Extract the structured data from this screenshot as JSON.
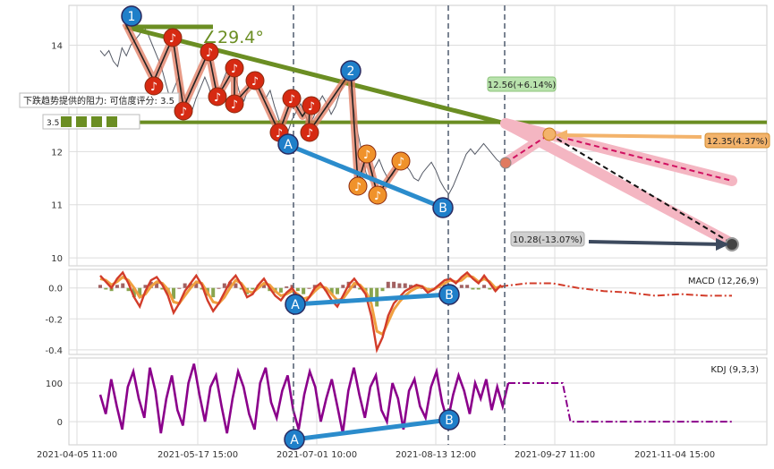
{
  "colors": {
    "price": "#555a66",
    "trend": "#6b8e23",
    "support": "#2b8ccc",
    "zigzag": "#e07a5f",
    "note_red": "#d62a12",
    "note_orange": "#f0922b",
    "badge_blue": "#1f7fc9",
    "macd": "#d23c2a",
    "macd_signal": "#f0a040",
    "kdj": "#8b008b",
    "forecast_up": "#d01060",
    "forecast_band": "#f4b6c2",
    "target_up_box": "#f3b36b",
    "target_mid_box": "#b9e3ad",
    "target_down_box": "#d0d0d0",
    "grid": "#dddddd",
    "vline": "#5a6678"
  },
  "chart_data": [
    {
      "type": "line",
      "panel": "price",
      "xlabel": "",
      "ylabel": "",
      "ylim": [
        9.85,
        14.75
      ],
      "yticks": [
        "10",
        "11",
        "12",
        "13",
        "14"
      ],
      "xtick_labels": [
        "2021-04-05 11:00",
        "2021-05-17 15:00",
        "2021-07-01 10:00",
        "2021-08-13 12:00",
        "2021-09-27 11:00",
        "2021-11-04 15:00"
      ],
      "angle_label": "∠29.4°",
      "resistance_label": "下跌趋势提供的阻力: 可信度评分: 3.5",
      "resistance_score": "3.5",
      "resistance_level": 12.55,
      "targets": [
        {
          "label": "12.56(+6.14%)",
          "value": 12.56
        },
        {
          "label": "12.35(4.37%)",
          "value": 12.35
        },
        {
          "label": "10.28(-13.07%)",
          "value": 10.28
        }
      ],
      "wave_labels": [
        "1",
        "2",
        "A",
        "B"
      ],
      "series": [
        {
          "values": [
            13.9,
            13.8,
            13.9,
            13.7,
            13.6,
            13.95,
            13.8,
            14.0,
            14.1,
            14.2,
            14.35,
            14.2,
            14.0,
            13.8,
            13.6,
            13.3,
            13.0,
            13.2,
            13.4,
            13.1,
            12.9,
            12.75,
            13.0,
            13.2,
            13.4,
            13.2,
            12.9,
            12.95,
            13.3,
            13.5,
            13.65,
            13.4,
            13.1,
            12.95,
            13.2,
            13.45,
            13.3,
            13.1,
            13.0,
            13.15,
            12.85,
            12.6,
            12.5,
            12.35,
            12.6,
            12.75,
            12.9,
            12.7,
            12.5,
            12.65,
            12.9,
            13.05,
            12.9,
            12.7,
            12.85,
            13.1,
            13.3,
            13.3,
            12.9,
            12.4,
            12.0,
            11.6,
            11.45,
            11.7,
            11.85,
            11.65,
            11.5,
            11.55,
            11.7,
            11.8,
            11.75,
            11.65,
            11.5,
            11.45,
            11.6,
            11.7,
            11.8,
            11.65,
            11.45,
            11.3,
            11.2,
            11.35,
            11.55,
            11.75,
            11.95,
            12.05,
            11.95,
            12.05,
            12.15,
            12.05,
            11.95,
            11.85,
            11.78
          ]
        }
      ]
    },
    {
      "type": "line",
      "panel": "macd",
      "title": "MACD (12,26,9)",
      "ylim": [
        -0.43,
        0.12
      ],
      "yticks": [
        "0.0",
        "-0.2",
        "-0.4"
      ],
      "wave_labels": [
        "A",
        "B"
      ],
      "series": [
        {
          "values": [
            0.08,
            0.04,
            0.0,
            0.06,
            0.1,
            0.03,
            -0.06,
            -0.12,
            -0.02,
            0.05,
            0.07,
            0.02,
            -0.05,
            -0.16,
            -0.1,
            -0.02,
            0.03,
            0.08,
            0.02,
            -0.08,
            -0.15,
            -0.1,
            -0.03,
            0.04,
            0.08,
            0.02,
            -0.06,
            -0.04,
            0.02,
            0.06,
            0.0,
            -0.05,
            -0.08,
            -0.03,
            0.0,
            -0.06,
            -0.11,
            -0.06,
            0.0,
            0.03,
            -0.02,
            -0.08,
            -0.12,
            -0.05,
            0.02,
            0.06,
            0.01,
            -0.04,
            -0.18,
            -0.4,
            -0.32,
            -0.18,
            -0.1,
            -0.06,
            -0.02,
            0.0,
            0.02,
            0.01,
            -0.03,
            -0.01,
            0.02,
            0.05,
            0.06,
            0.03,
            0.07,
            0.1,
            0.06,
            0.03,
            0.08,
            0.03,
            -0.02,
            0.02
          ]
        },
        {
          "values": [
            0.06,
            0.05,
            0.02,
            0.04,
            0.07,
            0.05,
            0.0,
            -0.06,
            -0.04,
            0.01,
            0.04,
            0.03,
            -0.01,
            -0.09,
            -0.1,
            -0.05,
            0.0,
            0.04,
            0.03,
            -0.03,
            -0.09,
            -0.1,
            -0.06,
            0.0,
            0.05,
            0.03,
            -0.02,
            -0.03,
            0.0,
            0.03,
            0.02,
            -0.02,
            -0.05,
            -0.04,
            -0.02,
            -0.04,
            -0.07,
            -0.06,
            -0.02,
            0.01,
            0.0,
            -0.04,
            -0.08,
            -0.07,
            -0.02,
            0.03,
            0.02,
            -0.02,
            -0.1,
            -0.28,
            -0.3,
            -0.22,
            -0.14,
            -0.09,
            -0.05,
            -0.02,
            0.0,
            0.01,
            -0.01,
            -0.01,
            0.01,
            0.03,
            0.05,
            0.04,
            0.05,
            0.08,
            0.07,
            0.04,
            0.06,
            0.04,
            0.0,
            0.01
          ]
        },
        {
          "values": [
            0.01,
            0.03,
            0.03,
            0.0,
            -0.02,
            -0.03,
            -0.05,
            -0.04,
            -0.05,
            -0.05
          ]
        }
      ]
    },
    {
      "type": "line",
      "panel": "kdj",
      "title": "KDJ (9,3,3)",
      "ylim": [
        -60,
        165
      ],
      "yticks": [
        "100",
        "0"
      ],
      "wave_labels": [
        "A",
        "B"
      ],
      "series": [
        {
          "values": [
            70,
            20,
            110,
            40,
            -20,
            90,
            130,
            60,
            10,
            140,
            80,
            -30,
            60,
            120,
            30,
            -10,
            100,
            150,
            70,
            0,
            90,
            120,
            40,
            -30,
            60,
            130,
            90,
            20,
            -20,
            100,
            140,
            50,
            10,
            80,
            120,
            30,
            -20,
            70,
            130,
            90,
            0,
            60,
            110,
            40,
            -30,
            80,
            140,
            70,
            10,
            90,
            120,
            30,
            0,
            100,
            60,
            -20,
            80,
            110,
            40,
            10,
            90,
            130,
            50,
            0,
            70,
            120,
            80,
            20,
            100,
            60,
            110,
            30,
            90,
            40,
            100
          ]
        },
        {
          "values": [
            100,
            100,
            100,
            100,
            100,
            100,
            100,
            100,
            0,
            0,
            0,
            0,
            0,
            0,
            0,
            0,
            0,
            0,
            0,
            0,
            0,
            0,
            0,
            0,
            0,
            0,
            0,
            0,
            0,
            0
          ]
        }
      ]
    }
  ]
}
